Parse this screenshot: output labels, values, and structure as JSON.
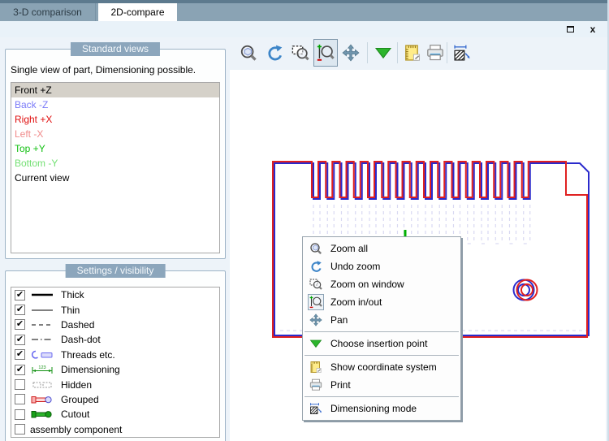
{
  "tabs": {
    "items": [
      {
        "label": "3-D comparison",
        "active": false
      },
      {
        "label": "2D-compare",
        "active": true
      }
    ]
  },
  "window": {
    "close_label": "x"
  },
  "standard_views": {
    "title": "Standard views",
    "description": "Single view of part, Dimensioning possible.",
    "items": [
      {
        "label": "Front +Z",
        "style": "color:#000000",
        "selected": true
      },
      {
        "label": "Back -Z",
        "style": "color:#7b7bf8",
        "selected": false
      },
      {
        "label": "Right +X",
        "style": "color:#e01010",
        "selected": false
      },
      {
        "label": "Left -X",
        "style": "color:#f08a8a",
        "selected": false
      },
      {
        "label": "Top +Y",
        "style": "color:#12c012",
        "selected": false
      },
      {
        "label": "Bottom -Y",
        "style": "color:#74e074",
        "selected": false
      },
      {
        "label": "Current view",
        "style": "color:#000000",
        "selected": false
      }
    ]
  },
  "settings": {
    "title": "Settings / visibility",
    "items": [
      {
        "label": "Thick",
        "mark": "✔",
        "icon": "thick-line"
      },
      {
        "label": "Thin",
        "mark": "✔",
        "icon": "thin-line"
      },
      {
        "label": "Dashed",
        "mark": "✔",
        "icon": "dashed-line"
      },
      {
        "label": "Dash-dot",
        "mark": "✔",
        "icon": "dash-dot-line"
      },
      {
        "label": "Threads etc.",
        "mark": "✔",
        "icon": "threads"
      },
      {
        "label": "Dimensioning",
        "mark": "✔",
        "icon": "dimensioning"
      },
      {
        "label": "Hidden",
        "mark": "",
        "icon": "hidden"
      },
      {
        "label": "Grouped",
        "mark": "",
        "icon": "grouped"
      },
      {
        "label": "Cutout",
        "mark": "",
        "icon": "cutout"
      },
      {
        "label": "assembly component",
        "mark": "",
        "icon": ""
      }
    ]
  },
  "toolbar": {
    "buttons": [
      {
        "icon": "zoom-all"
      },
      {
        "icon": "undo-zoom"
      },
      {
        "icon": "zoom-on-window"
      },
      {
        "icon": "zoom-in-out",
        "pressed": true
      },
      {
        "icon": "pan"
      },
      {
        "icon": "choose-insertion-point"
      },
      {
        "icon": "show-coordinate-system"
      },
      {
        "icon": "print"
      },
      {
        "icon": "dimensioning-mode"
      }
    ]
  },
  "context_menu": {
    "items": [
      {
        "label": "Zoom all",
        "icon": "zoom-all"
      },
      {
        "label": "Undo zoom",
        "icon": "undo-zoom"
      },
      {
        "label": "Zoom on window",
        "icon": "zoom-on-window"
      },
      {
        "label": "Zoom in/out",
        "icon": "zoom-in-out",
        "selected": true
      },
      {
        "label": "Pan",
        "icon": "pan"
      },
      {
        "label": "Choose insertion point",
        "icon": "choose-insertion-point",
        "separator_before": true
      },
      {
        "label": "Show coordinate system",
        "icon": "show-coordinate-system",
        "separator_before": true
      },
      {
        "label": "Print",
        "icon": "print"
      },
      {
        "label": "Dimensioning mode",
        "icon": "dimensioning-mode",
        "separator_before": true
      }
    ]
  },
  "drawing": {
    "colors": {
      "version_a_outline": "#e02020",
      "version_b_outline": "#2a2acc",
      "ghost_hidden_lines": "#d9d9f2",
      "dimension_marker": "#00b000"
    }
  }
}
